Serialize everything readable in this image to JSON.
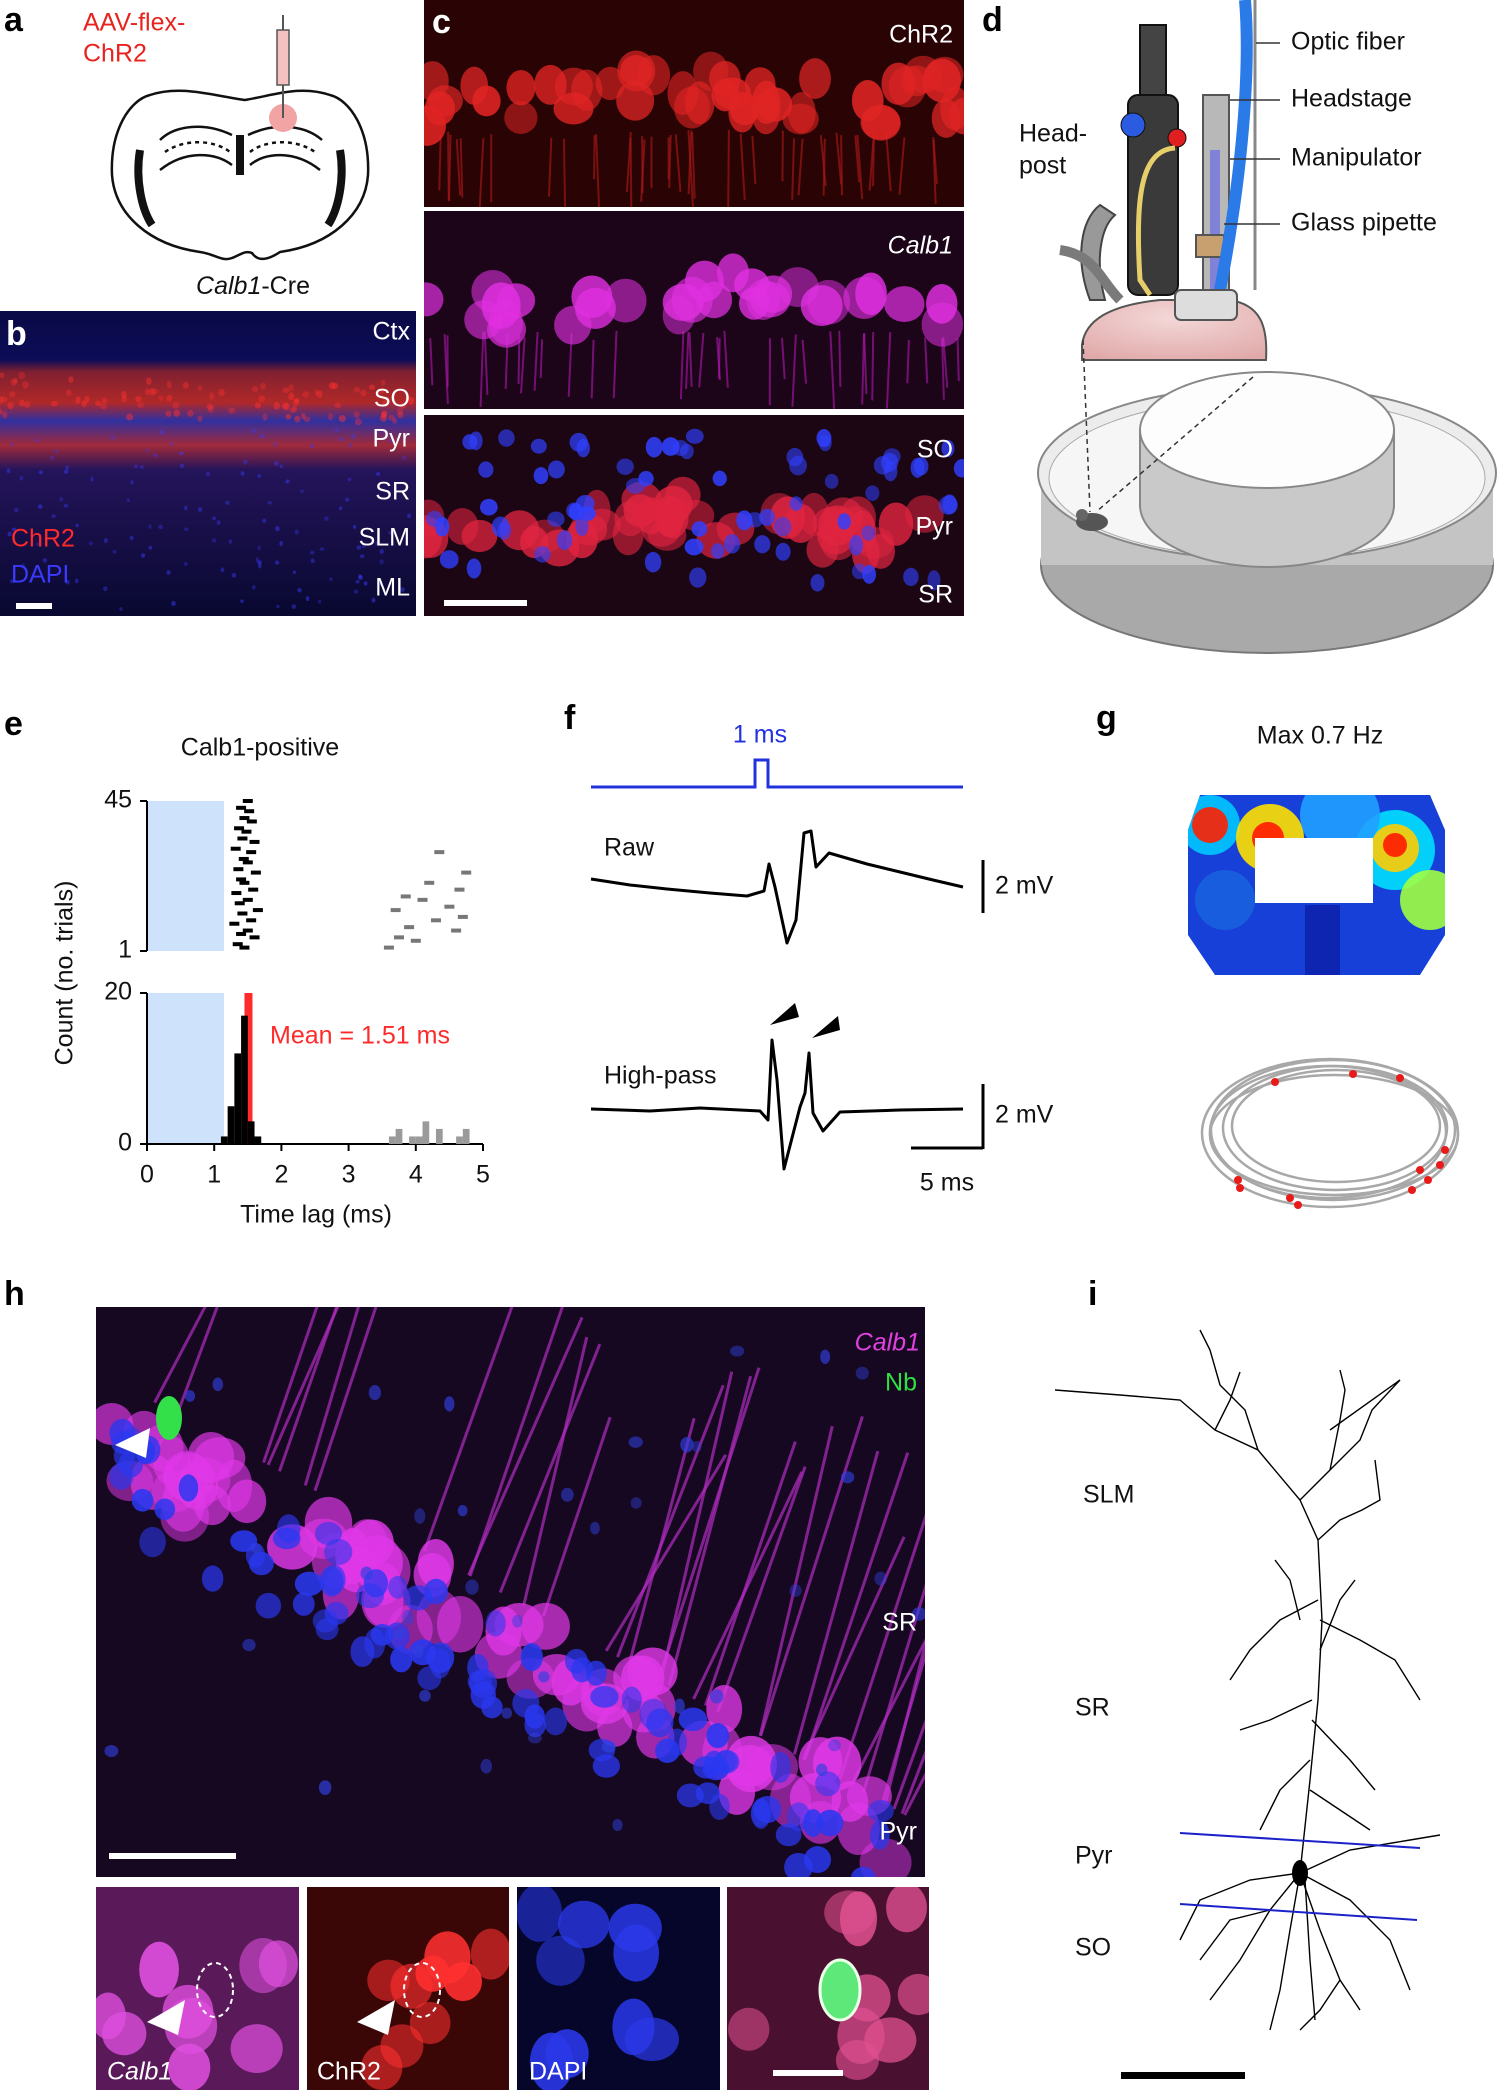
{
  "panels": {
    "a": {
      "label": "a",
      "construct": [
        "AAV-flex-",
        "ChR2"
      ],
      "mouse_line": {
        "gene": "Calb1",
        "suffix": "-Cre"
      }
    },
    "b": {
      "label": "b",
      "layers": [
        "Ctx",
        "SO",
        "Pyr",
        "SR",
        "SLM",
        "ML"
      ],
      "stains": [
        "ChR2",
        "DAPI"
      ]
    },
    "c": {
      "label": "c",
      "stains": [
        "ChR2",
        "Calb1"
      ],
      "layers": [
        "SO",
        "Pyr",
        "SR"
      ]
    },
    "d": {
      "label": "d",
      "parts": [
        "Optic fiber",
        "Headstage",
        "Manipulator",
        "Glass pipette"
      ],
      "headpost": [
        "Head-",
        "post"
      ]
    },
    "e": {
      "label": "e"
    },
    "f": {
      "label": "f",
      "stimulus": "1 ms",
      "traces": [
        "Raw",
        "High-pass"
      ],
      "scale_bars": [
        "2 mV",
        "2 mV",
        "5 ms"
      ]
    },
    "g": {
      "label": "g",
      "max_rate": "Max 0.7  Hz"
    },
    "h": {
      "label": "h",
      "stains": [
        "Calb1",
        "Nb"
      ],
      "layers": [
        "SR",
        "Pyr"
      ],
      "insets": [
        "Calb1",
        "ChR2",
        "DAPI"
      ]
    },
    "i": {
      "label": "i",
      "layers": [
        "SLM",
        "SR",
        "Pyr",
        "SO"
      ]
    }
  },
  "chart_data": {
    "type": "histogram",
    "title": "Calb1-positive",
    "xlabel": "Time lag (ms)",
    "ylabel": "Count (no. trials)",
    "xlim": [
      0,
      5
    ],
    "xticks": [
      0,
      1,
      2,
      3,
      4,
      5
    ],
    "ylim": [
      0,
      20
    ],
    "yticks": [
      0,
      20
    ],
    "series": [
      {
        "color": "#000000",
        "bins": [
          1.1,
          1.2,
          1.3,
          1.4,
          1.5,
          1.6,
          1.7
        ],
        "values": [
          1,
          5,
          12,
          17,
          3,
          1
        ]
      },
      {
        "color": "#9a9a9a",
        "bins": [
          3.6,
          3.7,
          3.8,
          3.9,
          4.0,
          4.1,
          4.2,
          4.3,
          4.4,
          4.5,
          4.6,
          4.7,
          4.8
        ],
        "values": [
          1,
          2,
          0,
          1,
          1,
          3,
          0,
          2,
          0,
          0,
          1,
          2
        ]
      }
    ],
    "mean": 1.51,
    "mean_color": "#ff2a2a",
    "annotation": "Mean = 1.51 ms",
    "raster": {
      "ylim": [
        1,
        45
      ],
      "yticks": [
        1,
        45
      ],
      "groups": [
        {
          "color": "#000000",
          "trials": [
            2,
            3,
            5,
            6,
            7,
            9,
            10,
            12,
            13,
            15,
            16,
            18,
            19,
            21,
            22,
            24,
            25,
            27,
            28,
            30,
            31,
            33,
            34,
            36,
            37,
            39,
            40,
            42,
            43,
            45
          ],
          "times": [
            1.45,
            1.35,
            1.6,
            1.4,
            1.5,
            1.3,
            1.55,
            1.42,
            1.65,
            1.38,
            1.5,
            1.33,
            1.58,
            1.45,
            1.4,
            1.62,
            1.36,
            1.5,
            1.44,
            1.55,
            1.32,
            1.6,
            1.42,
            1.48,
            1.37,
            1.56,
            1.45,
            1.52,
            1.4,
            1.5
          ]
        },
        {
          "color": "#777777",
          "trials": [
            2,
            4,
            5,
            7,
            8,
            10,
            11,
            13,
            14,
            16,
            17,
            19,
            21,
            24,
            30
          ],
          "times": [
            3.6,
            4.0,
            3.75,
            4.6,
            3.9,
            4.3,
            4.7,
            3.7,
            4.5,
            4.1,
            3.85,
            4.65,
            4.2,
            4.75,
            4.35
          ]
        }
      ]
    }
  }
}
